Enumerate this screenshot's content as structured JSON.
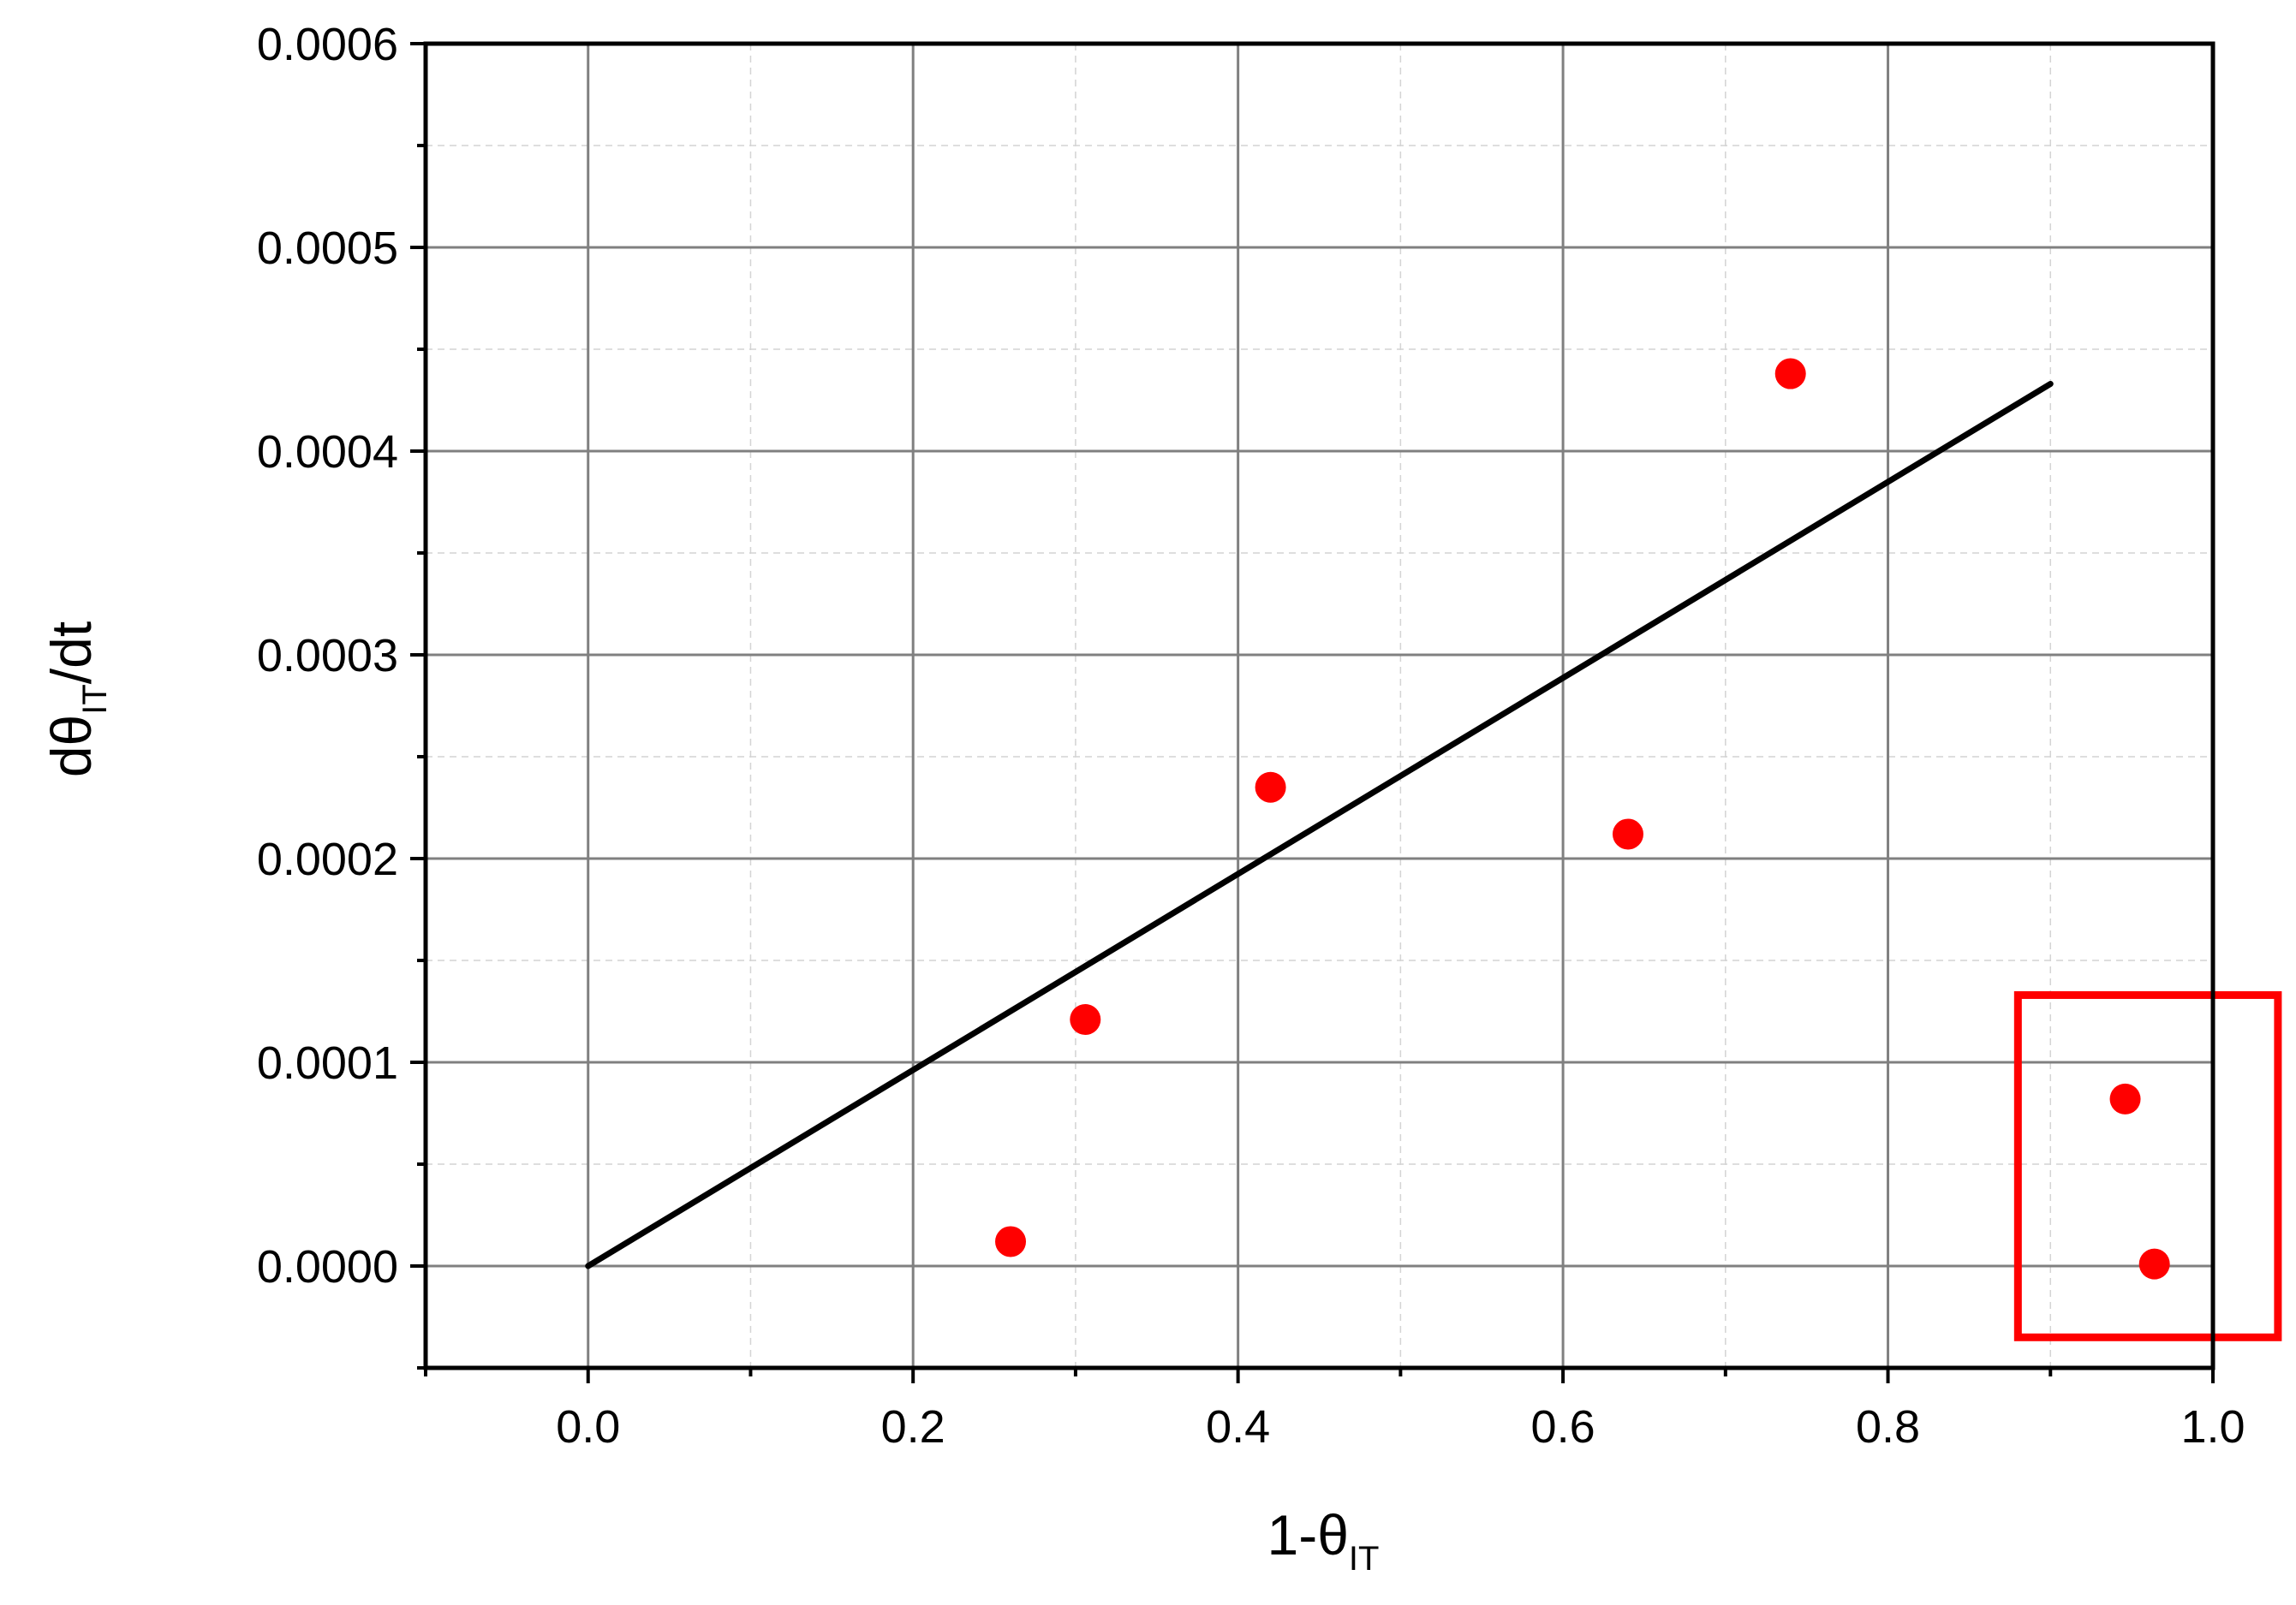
{
  "chart_data": {
    "type": "scatter",
    "title": "",
    "xlabel": {
      "main": "1-θ",
      "sub": "IT",
      "suffix": ""
    },
    "ylabel": {
      "main": "dθ",
      "sub": "IT",
      "suffix": "/dt"
    },
    "xlim": [
      -0.1,
      1.0
    ],
    "ylim": [
      -5e-05,
      0.0006
    ],
    "xticks": [
      {
        "value": 0.0,
        "label": "0.0"
      },
      {
        "value": 0.2,
        "label": "0.2"
      },
      {
        "value": 0.4,
        "label": "0.4"
      },
      {
        "value": 0.6,
        "label": "0.6"
      },
      {
        "value": 0.8,
        "label": "0.8"
      },
      {
        "value": 1.0,
        "label": "1.0"
      }
    ],
    "yticks": [
      {
        "value": 0.0,
        "label": "0.0000"
      },
      {
        "value": 0.0001,
        "label": "0.0001"
      },
      {
        "value": 0.0002,
        "label": "0.0002"
      },
      {
        "value": 0.0003,
        "label": "0.0003"
      },
      {
        "value": 0.0004,
        "label": "0.0004"
      },
      {
        "value": 0.0005,
        "label": "0.0005"
      },
      {
        "value": 0.0006,
        "label": "0.0006"
      }
    ],
    "x_minor_step": 0.1,
    "y_minor_step": 5e-05,
    "grid": true,
    "series": [
      {
        "kind": "points",
        "color": "#ff0000",
        "points": [
          {
            "x": 0.26,
            "y": 1.2e-05
          },
          {
            "x": 0.306,
            "y": 0.000121
          },
          {
            "x": 0.42,
            "y": 0.000235
          },
          {
            "x": 0.64,
            "y": 0.000212
          },
          {
            "x": 0.74,
            "y": 0.000438
          },
          {
            "x": 0.946,
            "y": 8.2e-05
          },
          {
            "x": 0.964,
            "y": 1e-06
          }
        ]
      },
      {
        "kind": "line",
        "color": "#000000",
        "points": [
          {
            "x": 0.0,
            "y": 0.0
          },
          {
            "x": 0.9,
            "y": 0.000433
          }
        ]
      }
    ],
    "highlight_box": {
      "color": "#ff0000",
      "x": [
        0.88,
        1.04
      ],
      "y": [
        -3.5e-05,
        0.000133
      ]
    }
  }
}
